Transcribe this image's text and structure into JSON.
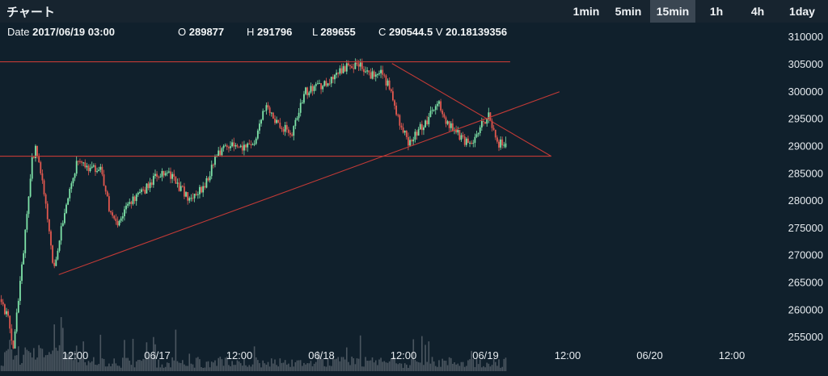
{
  "header": {
    "title": "チャート"
  },
  "timeframes": [
    {
      "label": "1min",
      "active": false
    },
    {
      "label": "5min",
      "active": false
    },
    {
      "label": "15min",
      "active": true
    },
    {
      "label": "1h",
      "active": false
    },
    {
      "label": "4h",
      "active": false
    },
    {
      "label": "1day",
      "active": false
    }
  ],
  "info": {
    "date_label": "Date",
    "date": "2017/06/19 03:00",
    "open_label": "O",
    "open": "289877",
    "high_label": "H",
    "high": "291796",
    "low_label": "L",
    "low": "289655",
    "close_label": "C",
    "close": "290544.5",
    "volume_label": "V",
    "volume": "20.18139356"
  },
  "colors": {
    "background": "#10202c",
    "up": "#7ee3a8",
    "down": "#e2584f",
    "trendline": "#c23a36",
    "volume": "#56606a"
  },
  "chart_data": {
    "type": "candlestick",
    "y_ticks": [
      "310000",
      "305000",
      "300000",
      "295000",
      "290000",
      "285000",
      "280000",
      "275000",
      "270000",
      "265000",
      "260000",
      "255000"
    ],
    "ylim": [
      250000,
      311500
    ],
    "x_ticks": [
      {
        "label": "12:00",
        "t": 0
      },
      {
        "label": "06/17",
        "t": 0.5
      },
      {
        "label": "12:00",
        "t": 1
      },
      {
        "label": "06/18",
        "t": 1.5
      },
      {
        "label": "12:00",
        "t": 2
      },
      {
        "label": "06/19",
        "t": 2.5
      },
      {
        "label": "12:00",
        "t": 3
      },
      {
        "label": "06/20",
        "t": 3.5
      },
      {
        "label": "12:00",
        "t": 4
      }
    ],
    "t_range": [
      -0.45,
      4.3
    ],
    "price_path": [
      [
        -0.45,
        262000
      ],
      [
        -0.39,
        258000
      ],
      [
        -0.37,
        252000
      ],
      [
        -0.32,
        266000
      ],
      [
        -0.25,
        288000
      ],
      [
        -0.23,
        289500
      ],
      [
        -0.18,
        282000
      ],
      [
        -0.12,
        267500
      ],
      [
        -0.05,
        279000
      ],
      [
        0.02,
        287000
      ],
      [
        0.1,
        286000
      ],
      [
        0.17,
        286000
      ],
      [
        0.22,
        278000
      ],
      [
        0.27,
        275000
      ],
      [
        0.33,
        279500
      ],
      [
        0.42,
        281500
      ],
      [
        0.5,
        284500
      ],
      [
        0.58,
        285000
      ],
      [
        0.66,
        282000
      ],
      [
        0.72,
        280000
      ],
      [
        0.8,
        283000
      ],
      [
        0.87,
        288000
      ],
      [
        0.93,
        290500
      ],
      [
        1.0,
        289500
      ],
      [
        1.1,
        291000
      ],
      [
        1.17,
        297500
      ],
      [
        1.24,
        294000
      ],
      [
        1.33,
        292500
      ],
      [
        1.41,
        300000
      ],
      [
        1.5,
        301000
      ],
      [
        1.58,
        302500
      ],
      [
        1.66,
        304500
      ],
      [
        1.74,
        305000
      ],
      [
        1.8,
        303000
      ],
      [
        1.86,
        304000
      ],
      [
        1.92,
        301000
      ],
      [
        1.98,
        295000
      ],
      [
        2.04,
        290500
      ],
      [
        2.1,
        293000
      ],
      [
        2.16,
        295000
      ],
      [
        2.22,
        298000
      ],
      [
        2.28,
        294000
      ],
      [
        2.35,
        292000
      ],
      [
        2.42,
        290000
      ],
      [
        2.48,
        294000
      ],
      [
        2.53,
        295500
      ],
      [
        2.59,
        290500
      ],
      [
        2.63,
        290544
      ]
    ],
    "trendlines": [
      {
        "name": "resistance",
        "from": [
          -0.6,
          305500
        ],
        "to": [
          2.65,
          305500
        ]
      },
      {
        "name": "support",
        "from": [
          -0.6,
          288200
        ],
        "to": [
          2.9,
          288200
        ]
      },
      {
        "name": "rising",
        "from": [
          -0.1,
          266500
        ],
        "to": [
          2.95,
          300000
        ]
      },
      {
        "name": "falling",
        "from": [
          1.93,
          305200
        ],
        "to": [
          2.9,
          288200
        ]
      }
    ]
  }
}
